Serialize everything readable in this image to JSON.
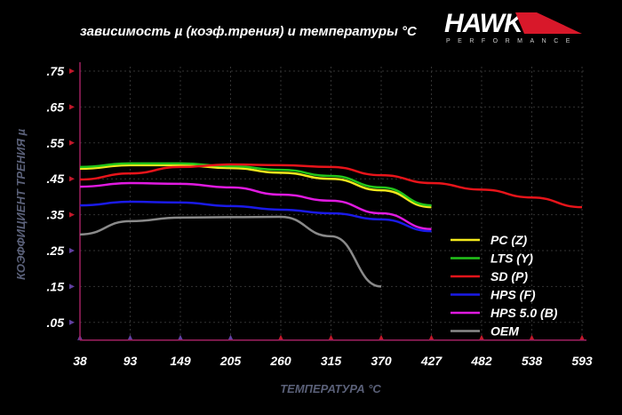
{
  "chart_data": {
    "type": "line",
    "title": "зависимость µ (коэф.трения) и температуры °С",
    "xlabel": "ТЕМПЕРАТУРА °С",
    "ylabel": "КОЭФФИЦИЕНТ ТРЕНИЯ µ",
    "x": [
      38,
      93,
      149,
      205,
      260,
      315,
      370,
      427,
      482,
      538,
      593
    ],
    "x_tick_labels": [
      "38",
      "93",
      "149",
      "205",
      "260",
      "315",
      "370",
      "427",
      "482",
      "538",
      "593"
    ],
    "y_ticks": [
      0.05,
      0.15,
      0.25,
      0.35,
      0.45,
      0.55,
      0.65,
      0.75
    ],
    "y_tick_labels": [
      ".05",
      ".15",
      ".25",
      ".35",
      ".45",
      ".55",
      ".65",
      ".75"
    ],
    "ylim": [
      0.05,
      0.75
    ],
    "grid": true,
    "legend_position": "bottom-right",
    "series": [
      {
        "name": "PC (Z)",
        "color": "#f2e81c",
        "values": [
          0.478,
          0.488,
          0.488,
          0.48,
          0.467,
          0.45,
          0.418,
          0.371,
          null,
          null,
          null
        ]
      },
      {
        "name": "LTS (Y)",
        "color": "#22c41a",
        "values": [
          0.483,
          0.493,
          0.493,
          0.485,
          0.475,
          0.458,
          0.426,
          0.376,
          null,
          null,
          null
        ]
      },
      {
        "name": "SD (P)",
        "color": "#e8141a",
        "values": [
          0.448,
          0.465,
          0.483,
          0.49,
          0.488,
          0.483,
          0.46,
          0.438,
          0.42,
          0.398,
          0.371
        ]
      },
      {
        "name": "HPS (F)",
        "color": "#1a1ae8",
        "values": [
          0.376,
          0.386,
          0.384,
          0.374,
          0.364,
          0.354,
          0.337,
          0.304,
          null,
          null,
          null
        ]
      },
      {
        "name": "HPS 5.0 (B)",
        "color": "#e01ae0",
        "values": [
          0.428,
          0.438,
          0.436,
          0.426,
          0.406,
          0.389,
          0.354,
          0.31,
          null,
          null,
          null
        ]
      },
      {
        "name": "OEM",
        "color": "#8a8a8a",
        "values": [
          0.295,
          0.332,
          0.342,
          0.343,
          0.344,
          0.29,
          0.15,
          null,
          null,
          null,
          null
        ]
      }
    ]
  },
  "logo": {
    "brand": "HAWK",
    "sub": "PERFORMANCE"
  }
}
